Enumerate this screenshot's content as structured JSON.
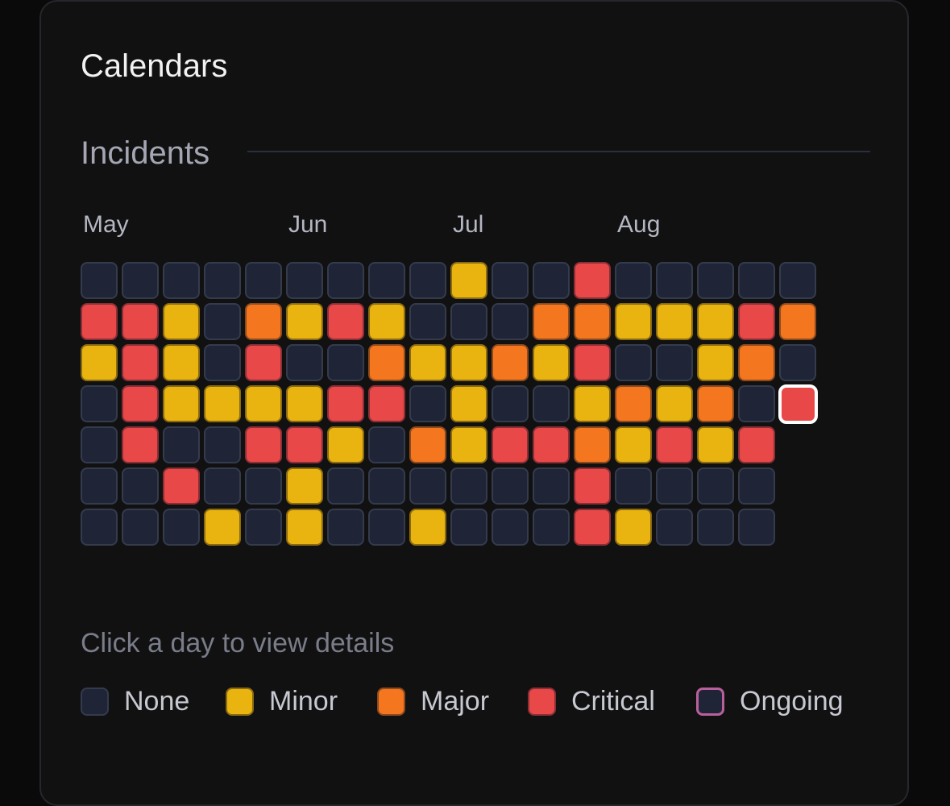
{
  "card": {
    "title": "Calendars"
  },
  "incidents": {
    "title": "Incidents",
    "months": [
      "May",
      "Jun",
      "Jul",
      "Aug"
    ],
    "hint": "Click a day to view details",
    "colors": {
      "none": "#1f2536",
      "minor": "#e9b40f",
      "major": "#f4761f",
      "critical": "#e84848",
      "ongoing": "#b9609c",
      "selected_outline": "#ffffff"
    },
    "weeks": [
      [
        "none",
        "critical",
        "minor",
        "none",
        "none",
        "none",
        "none"
      ],
      [
        "none",
        "critical",
        "critical",
        "critical",
        "critical",
        "none",
        "none"
      ],
      [
        "none",
        "minor",
        "minor",
        "minor",
        "none",
        "critical",
        "none"
      ],
      [
        "none",
        "none",
        "none",
        "minor",
        "none",
        "none",
        "minor"
      ],
      [
        "none",
        "major",
        "critical",
        "minor",
        "critical",
        "none",
        "none"
      ],
      [
        "none",
        "minor",
        "none",
        "minor",
        "critical",
        "minor",
        "minor"
      ],
      [
        "none",
        "critical",
        "none",
        "critical",
        "minor",
        "none",
        "none"
      ],
      [
        "none",
        "minor",
        "major",
        "critical",
        "none",
        "none",
        "none"
      ],
      [
        "none",
        "none",
        "minor",
        "none",
        "major",
        "none",
        "minor"
      ],
      [
        "minor",
        "none",
        "minor",
        "minor",
        "minor",
        "none",
        "none"
      ],
      [
        "none",
        "none",
        "major",
        "none",
        "critical",
        "none",
        "none"
      ],
      [
        "none",
        "major",
        "minor",
        "none",
        "critical",
        "none",
        "none"
      ],
      [
        "critical",
        "major",
        "critical",
        "minor",
        "major",
        "critical",
        "critical"
      ],
      [
        "none",
        "minor",
        "none",
        "major",
        "minor",
        "none",
        "minor"
      ],
      [
        "none",
        "minor",
        "none",
        "minor",
        "critical",
        "none",
        "none"
      ],
      [
        "none",
        "minor",
        "minor",
        "major",
        "minor",
        "none",
        "none"
      ],
      [
        "none",
        "critical",
        "major",
        "none",
        "critical",
        "none",
        "none"
      ],
      [
        "none",
        "major",
        "none",
        "critical"
      ]
    ],
    "selected_day": {
      "week": 17,
      "day": 3
    },
    "legend": [
      {
        "key": "none",
        "label": "None"
      },
      {
        "key": "minor",
        "label": "Minor"
      },
      {
        "key": "major",
        "label": "Major"
      },
      {
        "key": "critical",
        "label": "Critical"
      },
      {
        "key": "ongoing",
        "label": "Ongoing"
      }
    ]
  }
}
